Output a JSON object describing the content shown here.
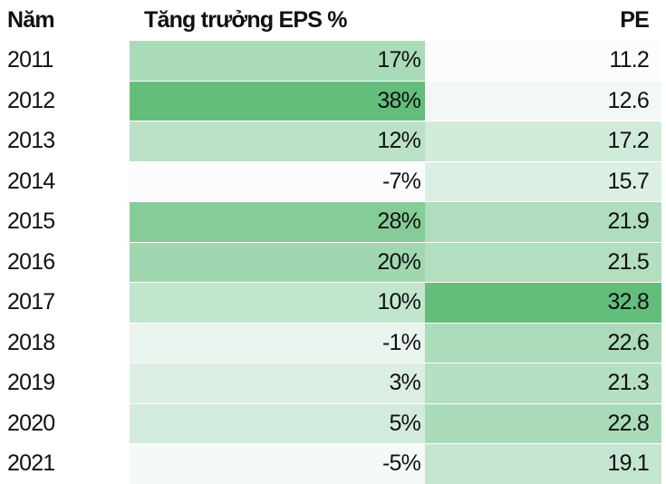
{
  "table": {
    "header": [
      "Năm",
      "Tăng trưởng EPS %",
      "PE"
    ],
    "rows": [
      [
        "2011",
        "17%",
        "11.2"
      ],
      [
        "2012",
        "38%",
        "12.6"
      ],
      [
        "2013",
        "12%",
        "17.2"
      ],
      [
        "2014",
        "-7%",
        "15.7"
      ],
      [
        "2015",
        "28%",
        "21.9"
      ],
      [
        "2016",
        "20%",
        "21.5"
      ],
      [
        "2017",
        "10%",
        "32.8"
      ],
      [
        "2018",
        "-1%",
        "22.6"
      ],
      [
        "2019",
        "3%",
        "21.3"
      ],
      [
        "2020",
        "5%",
        "22.8"
      ],
      [
        "2021",
        "-5%",
        "19.1"
      ]
    ],
    "cell_colors": [
      [
        null,
        "#aadbb9",
        "#fcfcff"
      ],
      [
        null,
        "#63be7b",
        "#f2f8f6"
      ],
      [
        null,
        "#bbe2c7",
        "#d1ebda"
      ],
      [
        null,
        "#fcfcff",
        "#dcefe4"
      ],
      [
        null,
        "#85cc98",
        "#b0ddbe"
      ],
      [
        null,
        "#a0d7b0",
        "#b3dec0"
      ],
      [
        null,
        "#c2e5cd",
        "#63be7b"
      ],
      [
        null,
        "#e8f4ed",
        "#abdbb9"
      ],
      [
        null,
        "#daeee2",
        "#b4dfc1"
      ],
      [
        null,
        "#d3ebdc",
        "#aadbb8"
      ],
      [
        null,
        "#f5f9f9",
        "#c4e5cf"
      ]
    ]
  }
}
